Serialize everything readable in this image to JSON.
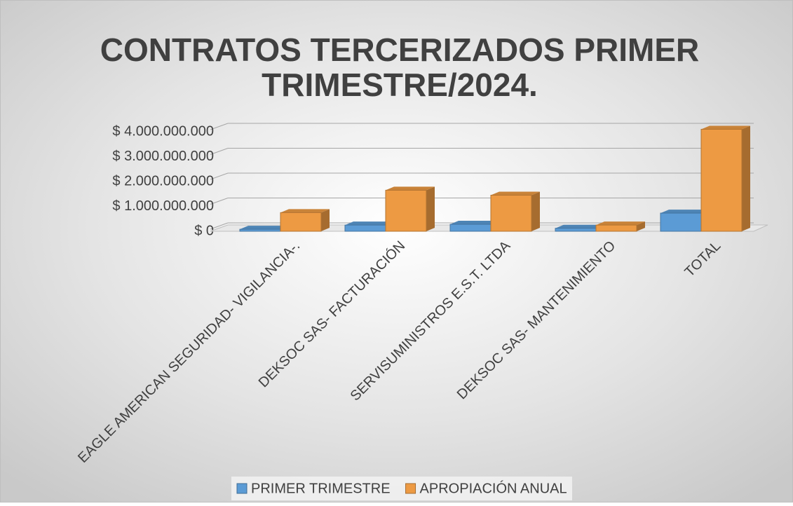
{
  "chart_data": {
    "type": "bar",
    "title": "CONTRATOS TERCERIZADOS PRIMER TRIMESTRE/2024.",
    "categories": [
      "EAGLE AMERICAN  SEGURIDAD- VIGILANCIA-.",
      "DEKSOC SAS- FACTURACIÓN",
      "SERVISUMINISTROS E.S.T. LTDA",
      "DEKSOC SAS- MANTENIMIENTO",
      "TOTAL"
    ],
    "series": [
      {
        "name": "PRIMER TRIMESTRE",
        "color": "#5b9bd5",
        "values": [
          80000000,
          250000000,
          280000000,
          120000000,
          730000000
        ]
      },
      {
        "name": "APROPIACIÓN ANUAL",
        "color": "#ed9a43",
        "values": [
          750000000,
          1650000000,
          1450000000,
          250000000,
          4100000000
        ]
      }
    ],
    "ylim": [
      0,
      4000000000
    ],
    "yticks": [
      {
        "value": 0,
        "label": "$ 0"
      },
      {
        "value": 1000000000,
        "label": "$ 1.000.000.000"
      },
      {
        "value": 2000000000,
        "label": "$ 2.000.000.000"
      },
      {
        "value": 3000000000,
        "label": "$ 3.000.000.000"
      },
      {
        "value": 4000000000,
        "label": "$ 4.000.000.000"
      }
    ],
    "grid": true,
    "legend": "bottom"
  }
}
